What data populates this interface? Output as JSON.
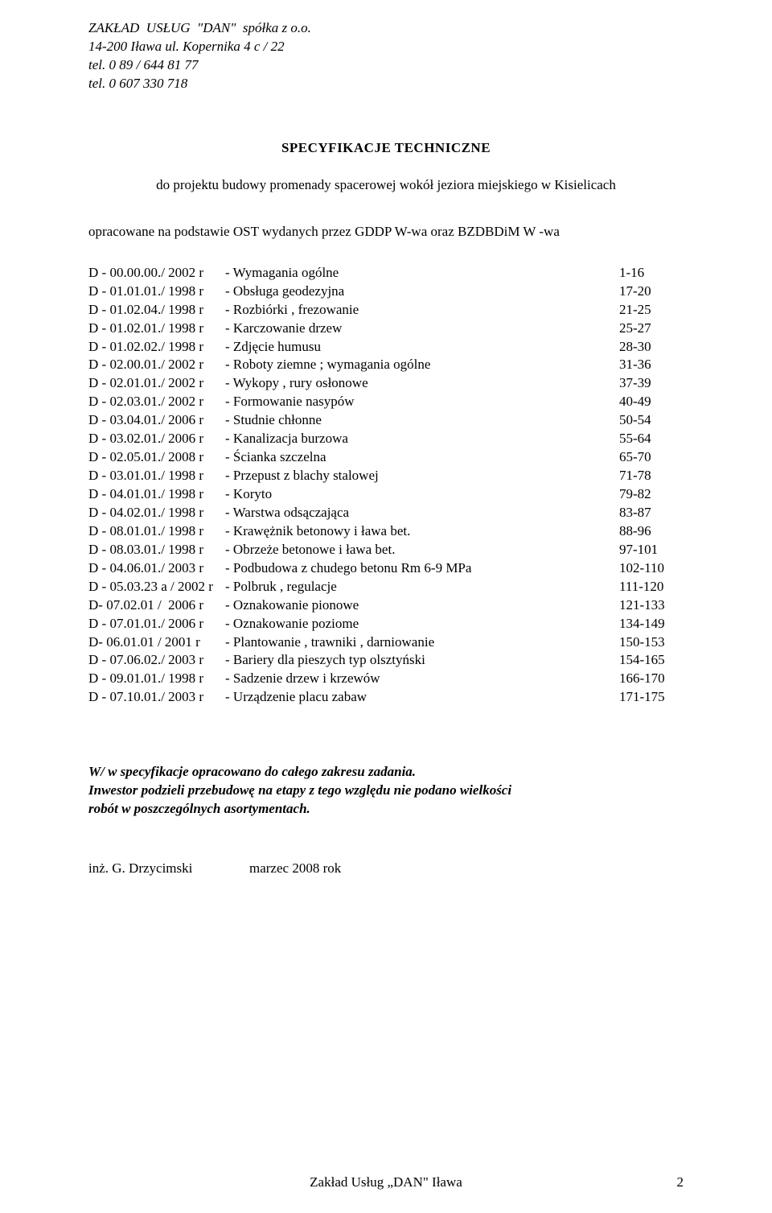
{
  "header": {
    "company": "ZAKŁAD  USŁUG  \"DAN\"  spółka z o.o.",
    "address": "14-200  Iława  ul.  Kopernika 4 c / 22",
    "phone1": "tel. 0 89 / 644 81 77",
    "phone2": "tel. 0 607 330 718"
  },
  "title": "SPECYFIKACJE    TECHNICZNE",
  "subtitle": "do projektu budowy promenady spacerowej wokół jeziora miejskiego w Kisielicach",
  "basis": "opracowane na podstawie OST wydanych przez GDDP W-wa oraz BZDBDiM W -wa",
  "specs": [
    {
      "code": "D - 00.00.00./ 2002 r",
      "desc": "- Wymagania ogólne",
      "pages": "1-16"
    },
    {
      "code": "D - 01.01.01./ 1998 r",
      "desc": "- Obsługa geodezyjna",
      "pages": "17-20"
    },
    {
      "code": "D - 01.02.04./ 1998 r",
      "desc": "- Rozbiórki , frezowanie",
      "pages": "21-25"
    },
    {
      "code": "D - 01.02.01./ 1998 r",
      "desc": "- Karczowanie drzew",
      "pages": "25-27"
    },
    {
      "code": "D - 01.02.02./ 1998 r",
      "desc": "- Zdjęcie humusu",
      "pages": "28-30"
    },
    {
      "code": "D - 02.00.01./ 2002 r",
      "desc": "- Roboty ziemne ; wymagania ogólne",
      "pages": "31-36"
    },
    {
      "code": "D - 02.01.01./ 2002 r",
      "desc": "- Wykopy , rury osłonowe",
      "pages": "37-39"
    },
    {
      "code": "D - 02.03.01./ 2002 r",
      "desc": "- Formowanie nasypów",
      "pages": "40-49"
    },
    {
      "code": "D - 03.04.01./ 2006 r",
      "desc": "- Studnie chłonne",
      "pages": "50-54"
    },
    {
      "code": "D - 03.02.01./ 2006 r",
      "desc": "- Kanalizacja burzowa",
      "pages": "55-64"
    },
    {
      "code": "D - 02.05.01./ 2008 r",
      "desc": "- Ścianka szczelna",
      "pages": "65-70"
    },
    {
      "code": "D - 03.01.01./ 1998 r",
      "desc": "- Przepust z blachy stalowej",
      "pages": "71-78"
    },
    {
      "code": "D - 04.01.01./ 1998 r",
      "desc": "- Koryto",
      "pages": "79-82"
    },
    {
      "code": "D - 04.02.01./ 1998 r",
      "desc": "- Warstwa odsączająca",
      "pages": "83-87"
    },
    {
      "code": "D - 08.01.01./ 1998 r",
      "desc": "- Krawężnik betonowy  i ława bet.",
      "pages": "88-96"
    },
    {
      "code": "D - 08.03.01./ 1998 r",
      "desc": "- Obrzeże betonowe i ława bet.",
      "pages": "97-101"
    },
    {
      "code": "D - 04.06.01./ 2003 r",
      "desc": "- Podbudowa z chudego betonu  Rm 6-9 MPa",
      "pages": "102-110"
    },
    {
      "code": "D - 05.03.23 a / 2002 r",
      "desc": "- Polbruk , regulacje",
      "pages": "111-120"
    },
    {
      "code": "D- 07.02.01 /  2006 r",
      "desc": "- Oznakowanie pionowe",
      "pages": "121-133"
    },
    {
      "code": "D - 07.01.01./ 2006 r",
      "desc": "- Oznakowanie poziome",
      "pages": "134-149"
    },
    {
      "code": "D- 06.01.01 / 2001 r",
      "desc": "- Plantowanie , trawniki , darniowanie",
      "pages": "150-153"
    },
    {
      "code": "D - 07.06.02./ 2003 r",
      "desc": "- Bariery dla pieszych typ olsztyński",
      "pages": "154-165"
    },
    {
      "code": "D - 09.01.01./ 1998 r",
      "desc": "- Sadzenie drzew i krzewów",
      "pages": "166-170"
    },
    {
      "code": "D - 07.10.01./ 2003 r",
      "desc": "- Urządzenie placu zabaw",
      "pages": "171-175"
    }
  ],
  "note": {
    "line1": "W/ w specyfikacje opracowano do całego zakresu zadania.",
    "line2": "Inwestor podzieli przebudowę na etapy z tego względu nie podano wielkości",
    "line3": "robót w poszczególnych asortymentach."
  },
  "signature": {
    "name": "inż. G. Drzycimski",
    "date": "marzec  2008 rok"
  },
  "footer": {
    "text": "Zakład  Usług  „DAN\"   Iława",
    "page": "2"
  }
}
